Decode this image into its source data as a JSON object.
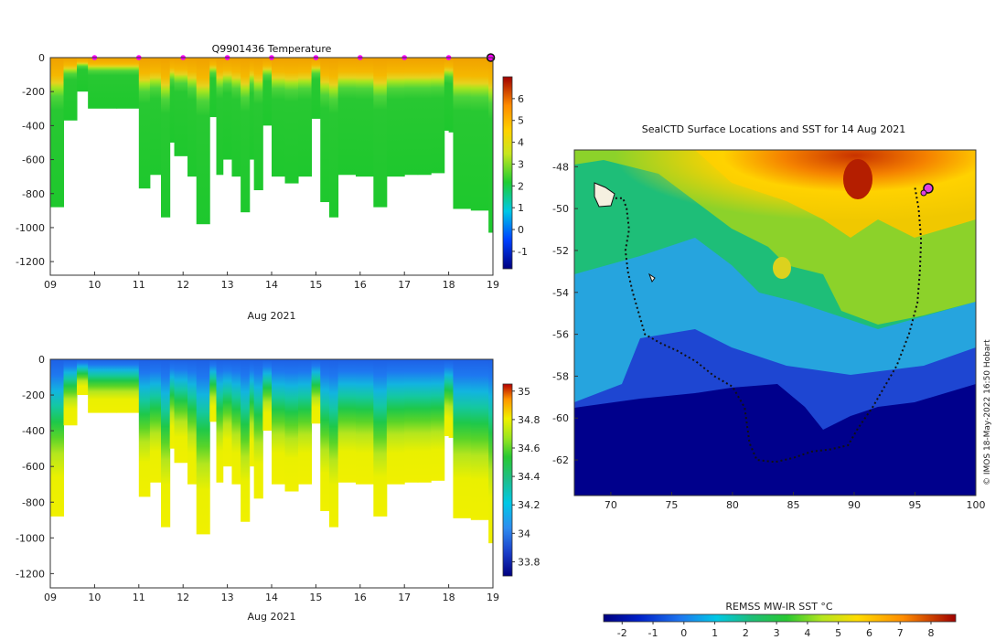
{
  "chart_data": [
    {
      "type": "heatmap",
      "title": "Q9901436  Temperature",
      "xlabel": "Aug 2021",
      "x_ticks": [
        "09",
        "10",
        "11",
        "12",
        "13",
        "14",
        "15",
        "16",
        "17",
        "18",
        "19"
      ],
      "xlim": [
        9,
        19
      ],
      "ylim": [
        -1280,
        0
      ],
      "y_ticks": [
        0,
        -200,
        -400,
        -600,
        -800,
        -1000,
        -1200
      ],
      "colorbar_ticks": [
        6,
        5,
        4,
        3,
        2,
        1,
        0,
        -1
      ],
      "colorbar_range": [
        -1.8,
        7
      ],
      "marker_days": [
        10,
        11,
        12,
        13,
        14,
        15,
        16,
        17,
        18
      ],
      "marker_color": "#ff00ff",
      "profile_depths": [
        [
          9.0,
          -880
        ],
        [
          9.3,
          -370
        ],
        [
          9.6,
          -200
        ],
        [
          9.85,
          -300
        ],
        [
          10.5,
          -300
        ],
        [
          11.0,
          -770
        ],
        [
          11.25,
          -690
        ],
        [
          11.5,
          -940
        ],
        [
          11.7,
          -500
        ],
        [
          11.8,
          -580
        ],
        [
          12.1,
          -700
        ],
        [
          12.3,
          -980
        ],
        [
          12.6,
          -350
        ],
        [
          12.75,
          -690
        ],
        [
          12.9,
          -600
        ],
        [
          13.1,
          -700
        ],
        [
          13.3,
          -910
        ],
        [
          13.5,
          -600
        ],
        [
          13.6,
          -780
        ],
        [
          13.8,
          -400
        ],
        [
          14.0,
          -700
        ],
        [
          14.3,
          -740
        ],
        [
          14.6,
          -700
        ],
        [
          14.9,
          -360
        ],
        [
          15.1,
          -850
        ],
        [
          15.3,
          -940
        ],
        [
          15.5,
          -690
        ],
        [
          15.9,
          -700
        ],
        [
          16.3,
          -880
        ],
        [
          16.6,
          -700
        ],
        [
          17.0,
          -690
        ],
        [
          17.3,
          -690
        ],
        [
          17.6,
          -680
        ],
        [
          17.9,
          -430
        ],
        [
          18.0,
          -440
        ],
        [
          18.1,
          -890
        ],
        [
          18.5,
          -900
        ],
        [
          18.9,
          -1030
        ]
      ]
    },
    {
      "type": "heatmap",
      "title": "",
      "xlabel": "Aug 2021",
      "x_ticks": [
        "09",
        "10",
        "11",
        "12",
        "13",
        "14",
        "15",
        "16",
        "17",
        "18",
        "19"
      ],
      "xlim": [
        9,
        19
      ],
      "ylim": [
        -1280,
        0
      ],
      "y_ticks": [
        0,
        -200,
        -400,
        -600,
        -800,
        -1000,
        -1200
      ],
      "colorbar_ticks": [
        35,
        34.8,
        34.6,
        34.4,
        34.2,
        34,
        33.8
      ],
      "colorbar_range": [
        33.7,
        35.05
      ]
    },
    {
      "type": "heatmap",
      "title": "SealCTD Surface Locations and SST for 14 Aug 2021",
      "xlabel": "",
      "ylabel": "",
      "xlim": [
        67,
        100
      ],
      "ylim": [
        -63.7,
        -47.2
      ],
      "x_ticks": [
        70,
        75,
        80,
        85,
        90,
        95,
        100
      ],
      "y_ticks": [
        -48,
        -50,
        -52,
        -54,
        -56,
        -58,
        -60,
        -62
      ],
      "colorbar_label": "REMSS MW-IR SST °C",
      "colorbar_ticks": [
        -2,
        -1,
        0,
        1,
        2,
        3,
        4,
        5,
        6,
        7,
        8
      ],
      "colorbar_range": [
        -2.6,
        8.8
      ],
      "credit": "© IMOS 18-May-2022 16:50 Hobart",
      "track": [
        [
          70,
          -49.5
        ],
        [
          71,
          -49.5
        ],
        [
          71.3,
          -50
        ],
        [
          71.5,
          -51
        ],
        [
          71.2,
          -52
        ],
        [
          71.4,
          -53
        ],
        [
          71.8,
          -54
        ],
        [
          72.3,
          -55
        ],
        [
          72.8,
          -56
        ],
        [
          74,
          -56.4
        ],
        [
          75.5,
          -56.8
        ],
        [
          77,
          -57.3
        ],
        [
          78.5,
          -58
        ],
        [
          80,
          -58.5
        ],
        [
          81,
          -59.5
        ],
        [
          81.4,
          -61.2
        ],
        [
          82,
          -62
        ],
        [
          83.5,
          -62.1
        ],
        [
          85,
          -61.9
        ],
        [
          86.5,
          -61.6
        ],
        [
          88,
          -61.5
        ],
        [
          89.5,
          -61.3
        ],
        [
          90.3,
          -60.5
        ],
        [
          91.5,
          -59.5
        ],
        [
          92.5,
          -58.5
        ],
        [
          93.5,
          -57.5
        ],
        [
          94.5,
          -56
        ],
        [
          95.2,
          -54.5
        ],
        [
          95.4,
          -53
        ],
        [
          95.5,
          -51.5
        ],
        [
          95.3,
          -50
        ],
        [
          95,
          -49
        ]
      ]
    }
  ]
}
